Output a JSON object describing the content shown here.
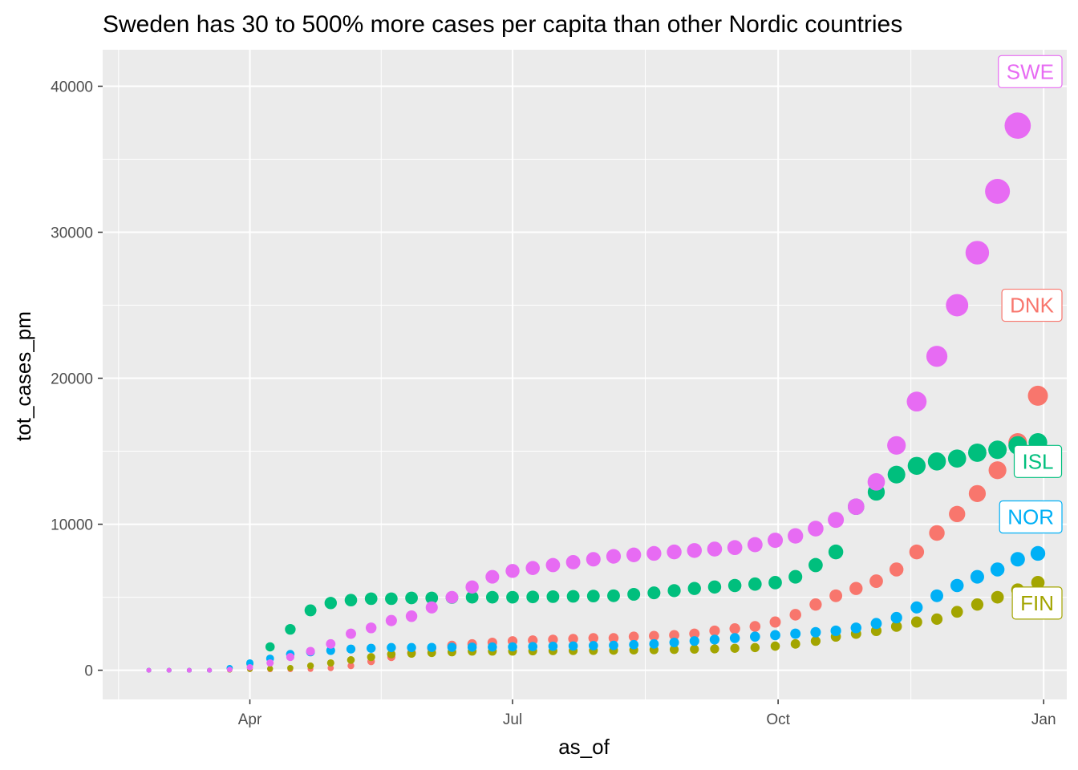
{
  "chart_data": {
    "type": "scatter",
    "title": "Sweden has 30 to 500% more cases per capita than other Nordic countries",
    "xlabel": "as_of",
    "ylabel": "tot_cases_pm",
    "x_tick_labels": [
      "Apr",
      "Jul",
      "Oct",
      "Jan"
    ],
    "x_tick_dates": [
      "2020-04-01",
      "2020-07-01",
      "2020-10-01",
      "2021-01-01"
    ],
    "y_ticks": [
      0,
      10000,
      20000,
      30000,
      40000
    ],
    "y_tick_labels": [
      "0",
      "10000",
      "20000",
      "30000",
      "40000"
    ],
    "ylim": [
      -2000,
      42500
    ],
    "xlim": [
      "2020-02-10",
      "2021-01-09"
    ],
    "grid": true,
    "point_size_encodes_y": true,
    "dates": [
      "2020-02-26",
      "2020-03-04",
      "2020-03-11",
      "2020-03-18",
      "2020-03-25",
      "2020-04-01",
      "2020-04-08",
      "2020-04-15",
      "2020-04-22",
      "2020-04-29",
      "2020-05-06",
      "2020-05-13",
      "2020-05-20",
      "2020-05-27",
      "2020-06-03",
      "2020-06-10",
      "2020-06-17",
      "2020-06-24",
      "2020-07-01",
      "2020-07-08",
      "2020-07-15",
      "2020-07-22",
      "2020-07-29",
      "2020-08-05",
      "2020-08-12",
      "2020-08-19",
      "2020-08-26",
      "2020-09-02",
      "2020-09-09",
      "2020-09-16",
      "2020-09-23",
      "2020-09-30",
      "2020-10-07",
      "2020-10-14",
      "2020-10-21",
      "2020-10-28",
      "2020-11-04",
      "2020-11-11",
      "2020-11-18",
      "2020-11-25",
      "2020-12-02",
      "2020-12-09",
      "2020-12-16",
      "2020-12-23",
      "2020-12-30"
    ],
    "series": [
      {
        "name": "DNK",
        "color": "#F8766D",
        "values": [
          0,
          0,
          0,
          0,
          20,
          70,
          50,
          60,
          80,
          150,
          300,
          600,
          900,
          1200,
          1500,
          1700,
          1800,
          1900,
          2000,
          2050,
          2100,
          2150,
          2200,
          2200,
          2300,
          2350,
          2400,
          2500,
          2700,
          2850,
          3000,
          3300,
          3800,
          4500,
          5100,
          5600,
          6100,
          6900,
          8100,
          9400,
          10700,
          12100,
          13700,
          15600,
          18800
        ]
      },
      {
        "name": "FIN",
        "color": "#A3A500",
        "values": [
          0,
          0,
          0,
          0,
          20,
          80,
          110,
          150,
          300,
          500,
          700,
          900,
          1100,
          1150,
          1200,
          1250,
          1300,
          1300,
          1300,
          1320,
          1330,
          1340,
          1350,
          1360,
          1380,
          1400,
          1420,
          1440,
          1460,
          1500,
          1550,
          1650,
          1800,
          2000,
          2300,
          2500,
          2700,
          3000,
          3300,
          3500,
          4000,
          4500,
          5000,
          5500,
          6000
        ]
      },
      {
        "name": "ISL",
        "color": "#00BF7D",
        "values": [
          0,
          0,
          0,
          0,
          130,
          450,
          1600,
          2800,
          4100,
          4600,
          4800,
          4900,
          4900,
          4950,
          4950,
          4980,
          5000,
          5000,
          5000,
          5020,
          5040,
          5060,
          5080,
          5100,
          5200,
          5300,
          5450,
          5600,
          5700,
          5800,
          5900,
          6000,
          6400,
          7200,
          8100,
          11200,
          12200,
          13400,
          14000,
          14300,
          14500,
          14900,
          15100,
          15400,
          15600
        ]
      },
      {
        "name": "NOR",
        "color": "#00B0F6",
        "values": [
          0,
          0,
          0,
          0,
          150,
          500,
          800,
          1100,
          1250,
          1350,
          1450,
          1500,
          1550,
          1550,
          1560,
          1570,
          1580,
          1590,
          1600,
          1620,
          1640,
          1660,
          1680,
          1700,
          1750,
          1800,
          1900,
          2000,
          2100,
          2200,
          2300,
          2400,
          2500,
          2600,
          2700,
          2900,
          3200,
          3600,
          4300,
          5100,
          5800,
          6400,
          6900,
          7600,
          8000
        ]
      },
      {
        "name": "SWE",
        "color": "#E76BF3",
        "values": [
          0,
          0,
          0,
          0,
          50,
          200,
          500,
          900,
          1300,
          1800,
          2500,
          2900,
          3400,
          3700,
          4300,
          5000,
          5700,
          6400,
          6800,
          7000,
          7200,
          7400,
          7600,
          7800,
          7900,
          8000,
          8100,
          8200,
          8300,
          8400,
          8600,
          8900,
          9200,
          9700,
          10300,
          11200,
          12900,
          15400,
          18400,
          21500,
          25000,
          28600,
          32800,
          37300,
          41000
        ]
      }
    ],
    "end_labels": [
      {
        "text": "SWE",
        "color": "#E76BF3",
        "y": 41000
      },
      {
        "text": "DNK",
        "color": "#F8766D",
        "y": 25000
      },
      {
        "text": "ISL",
        "color": "#00BF7D",
        "y": 14300
      },
      {
        "text": "NOR",
        "color": "#00B0F6",
        "y": 10500
      },
      {
        "text": "FIN",
        "color": "#A3A500",
        "y": 4600
      }
    ]
  }
}
